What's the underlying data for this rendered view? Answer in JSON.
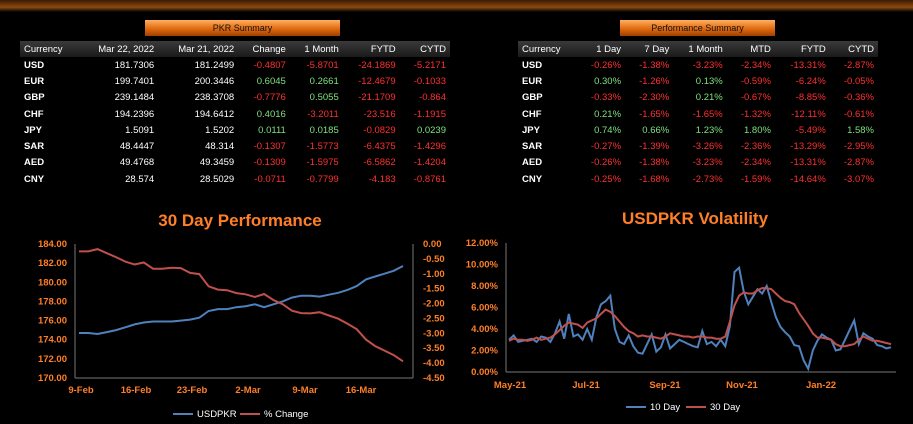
{
  "pkr_summary": {
    "title": "PKR Summary",
    "headers": [
      "Currency",
      "Mar 22, 2022",
      "Mar 21, 2022",
      "Change",
      "1 Month",
      "FYTD",
      "CYTD"
    ],
    "rows": [
      [
        "USD",
        "181.7306",
        "181.2499",
        "-0.4807",
        "-5.8701",
        "-24.1869",
        "-5.2171"
      ],
      [
        "EUR",
        "199.7401",
        "200.3446",
        "0.6045",
        "0.2661",
        "-12.4679",
        "-0.1033"
      ],
      [
        "GBP",
        "239.1484",
        "238.3708",
        "-0.7776",
        "0.5055",
        "-21.1709",
        "-0.864"
      ],
      [
        "CHF",
        "194.2396",
        "194.6412",
        "0.4016",
        "-3.2011",
        "-23.516",
        "-1.1915"
      ],
      [
        "JPY",
        "1.5091",
        "1.5202",
        "0.0111",
        "0.0185",
        "-0.0829",
        "0.0239"
      ],
      [
        "SAR",
        "48.4447",
        "48.314",
        "-0.1307",
        "-1.5773",
        "-6.4375",
        "-1.4296"
      ],
      [
        "AED",
        "49.4768",
        "49.3459",
        "-0.1309",
        "-1.5975",
        "-6.5862",
        "-1.4204"
      ],
      [
        "CNY",
        "28.574",
        "28.5029",
        "-0.0711",
        "-0.7799",
        "-4.183",
        "-0.8761"
      ]
    ],
    "colors": [
      [
        "neu",
        "neu",
        "neg",
        "neg",
        "neg",
        "neg"
      ],
      [
        "neu",
        "neu",
        "pos",
        "pos",
        "neg",
        "neg"
      ],
      [
        "neu",
        "neu",
        "neg",
        "pos",
        "neg",
        "neg"
      ],
      [
        "neu",
        "neu",
        "pos",
        "neg",
        "neg",
        "neg"
      ],
      [
        "neu",
        "neu",
        "pos",
        "pos",
        "neg",
        "pos"
      ],
      [
        "neu",
        "neu",
        "neg",
        "neg",
        "neg",
        "neg"
      ],
      [
        "neu",
        "neu",
        "neg",
        "neg",
        "neg",
        "neg"
      ],
      [
        "neu",
        "neu",
        "neg",
        "neg",
        "neg",
        "neg"
      ]
    ]
  },
  "performance_summary": {
    "title": "Performance Summary",
    "headers": [
      "Currency",
      "1 Day",
      "7 Day",
      "1 Month",
      "MTD",
      "FYTD",
      "CYTD"
    ],
    "rows": [
      [
        "USD",
        "-0.26%",
        "-1.38%",
        "-3.23%",
        "-2.34%",
        "-13.31%",
        "-2.87%"
      ],
      [
        "EUR",
        "0.30%",
        "-1.26%",
        "0.13%",
        "-0.59%",
        "-6.24%",
        "-0.05%"
      ],
      [
        "GBP",
        "-0.33%",
        "-2.30%",
        "0.21%",
        "-0.67%",
        "-8.85%",
        "-0.36%"
      ],
      [
        "CHF",
        "0.21%",
        "-1.65%",
        "-1.65%",
        "-1.32%",
        "-12.11%",
        "-0.61%"
      ],
      [
        "JPY",
        "0.74%",
        "0.66%",
        "1.23%",
        "1.80%",
        "-5.49%",
        "1.58%"
      ],
      [
        "SAR",
        "-0.27%",
        "-1.39%",
        "-3.26%",
        "-2.36%",
        "-13.29%",
        "-2.95%"
      ],
      [
        "AED",
        "-0.26%",
        "-1.38%",
        "-3.23%",
        "-2.34%",
        "-13.31%",
        "-2.87%"
      ],
      [
        "CNY",
        "-0.25%",
        "-1.68%",
        "-2.73%",
        "-1.59%",
        "-14.64%",
        "-3.07%"
      ]
    ]
  },
  "chart_data": [
    {
      "type": "line",
      "title": "30 Day Performance",
      "x_ticks": [
        "9-Feb",
        "16-Feb",
        "23-Feb",
        "2-Mar",
        "9-Mar",
        "16-Mar"
      ],
      "ylim_left": [
        170,
        184
      ],
      "y_ticks_left": [
        "184.00",
        "182.00",
        "180.00",
        "178.00",
        "176.00",
        "174.00",
        "172.00",
        "170.00"
      ],
      "ylim_right": [
        -4.5,
        0
      ],
      "y_ticks_right": [
        "0.00",
        "-0.50",
        "-1.00",
        "-1.50",
        "-2.00",
        "-2.50",
        "-3.00",
        "-3.50",
        "-4.00",
        "-4.50"
      ],
      "legend_position": "bottom",
      "series": [
        {
          "name": "USDPKR",
          "axis": "left",
          "color": "#4f81bd",
          "values": [
            174.7,
            174.7,
            174.6,
            174.8,
            175.0,
            175.3,
            175.6,
            175.8,
            175.9,
            175.9,
            175.9,
            176.0,
            176.1,
            176.3,
            177.0,
            177.2,
            177.2,
            177.4,
            177.5,
            177.7,
            177.4,
            177.7,
            178.0,
            178.4,
            178.6,
            178.6,
            178.5,
            178.7,
            178.9,
            179.2,
            179.6,
            180.3,
            180.6,
            180.9,
            181.2,
            181.7
          ]
        },
        {
          "name": "% Change",
          "axis": "right",
          "color": "#c0504d",
          "values": [
            -0.25,
            -0.25,
            -0.17,
            -0.31,
            -0.44,
            -0.59,
            -0.69,
            -0.62,
            -0.83,
            -0.83,
            -0.8,
            -0.81,
            -0.97,
            -1.01,
            -1.42,
            -1.53,
            -1.55,
            -1.65,
            -1.69,
            -1.78,
            -1.68,
            -1.88,
            -2.02,
            -2.24,
            -2.32,
            -2.33,
            -2.29,
            -2.4,
            -2.51,
            -2.68,
            -2.86,
            -3.21,
            -3.43,
            -3.58,
            -3.73,
            -3.94
          ]
        }
      ]
    },
    {
      "type": "line",
      "title": "USDPKR Volatility",
      "x_ticks": [
        "May-21",
        "Jul-21",
        "Sep-21",
        "Nov-21",
        "Jan-22"
      ],
      "ylim": [
        0,
        12
      ],
      "y_ticks": [
        "12.00%",
        "10.00%",
        "8.00%",
        "6.00%",
        "4.00%",
        "2.00%",
        "0.00%"
      ],
      "legend_position": "bottom",
      "series": [
        {
          "name": "10 Day",
          "color": "#4f81bd",
          "values": [
            3.0,
            3.4,
            2.8,
            2.9,
            3.0,
            3.1,
            2.8,
            3.3,
            3.2,
            2.8,
            3.6,
            4.7,
            3.1,
            5.4,
            3.3,
            3.5,
            3.0,
            4.0,
            3.0,
            5.1,
            6.3,
            6.6,
            7.1,
            4.0,
            2.8,
            2.6,
            3.4,
            2.4,
            1.8,
            1.7,
            2.6,
            3.5,
            1.9,
            2.3,
            3.5,
            2.2,
            2.6,
            3.0,
            2.8,
            2.6,
            2.4,
            2.3,
            3.8,
            2.6,
            2.8,
            2.4,
            3.0,
            2.4,
            4.3,
            9.3,
            9.7,
            7.5,
            6.3,
            7.0,
            7.7,
            7.3,
            8.0,
            6.5,
            5.1,
            4.2,
            3.7,
            3.3,
            2.5,
            2.4,
            1.1,
            0.3,
            2.0,
            2.9,
            3.5,
            3.2,
            3.0,
            2.0,
            2.1,
            3.0,
            3.9,
            4.8,
            2.6,
            3.6,
            3.3,
            3.1,
            2.5,
            2.4,
            2.2,
            2.3
          ]
        },
        {
          "name": "30 Day",
          "color": "#c0504d",
          "values": [
            2.9,
            3.1,
            3.0,
            3.0,
            2.9,
            3.0,
            3.2,
            3.0,
            3.1,
            3.2,
            3.5,
            3.9,
            4.3,
            4.6,
            4.5,
            4.4,
            4.1,
            4.6,
            4.8,
            5.0,
            5.4,
            5.8,
            5.6,
            5.2,
            4.7,
            4.2,
            3.8,
            3.6,
            3.3,
            3.4,
            3.3,
            3.3,
            3.2,
            3.1,
            3.3,
            3.6,
            3.5,
            3.4,
            3.3,
            3.3,
            3.2,
            3.3,
            3.3,
            3.2,
            3.2,
            3.1,
            3.1,
            3.3,
            4.7,
            6.2,
            7.1,
            7.4,
            7.3,
            7.3,
            7.6,
            7.8,
            7.8,
            7.7,
            7.3,
            6.9,
            6.6,
            6.5,
            6.3,
            5.5,
            4.9,
            4.3,
            3.6,
            3.2,
            3.2,
            3.1,
            3.0,
            2.6,
            2.4,
            2.4,
            2.5,
            2.6,
            3.0,
            3.3,
            3.1,
            2.9,
            2.9,
            2.8,
            2.7,
            2.6
          ]
        }
      ]
    }
  ]
}
